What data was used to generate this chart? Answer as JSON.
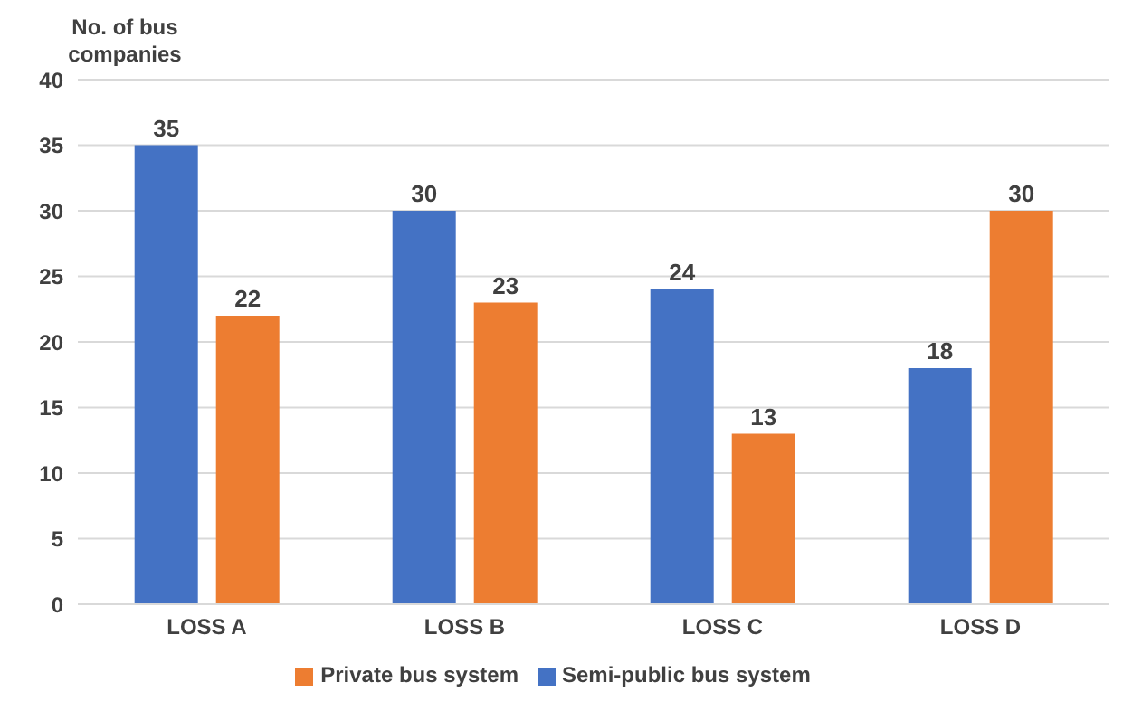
{
  "chart_data": {
    "type": "bar",
    "ylabel": "No. of bus companies",
    "categories": [
      "LOSS A",
      "LOSS B",
      "LOSS C",
      "LOSS D"
    ],
    "series": [
      {
        "name": "Semi-public bus system",
        "color": "#4472c4",
        "values": [
          35,
          30,
          24,
          18
        ]
      },
      {
        "name": "Private bus system",
        "color": "#ed7d31",
        "values": [
          22,
          23,
          13,
          30
        ]
      }
    ],
    "ylim": [
      0,
      40
    ],
    "yticks": [
      0,
      5,
      10,
      15,
      20,
      25,
      30,
      35,
      40
    ],
    "grid": "y",
    "legend": "bottom",
    "data_labels": true
  }
}
